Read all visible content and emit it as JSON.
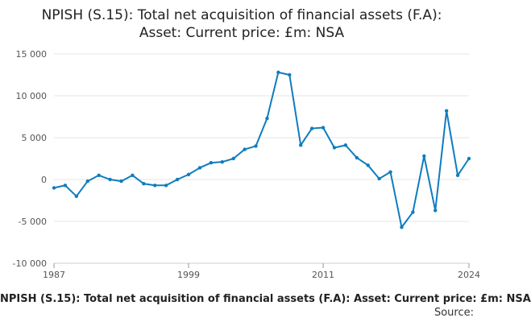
{
  "chart_data": {
    "type": "line",
    "title_line1": "NPISH (S.15): Total net acquisition of financial assets (F.A):",
    "title_line2": "Asset: Current price: £m: NSA",
    "caption": "NPISH (S.15): Total net acquisition of financial assets (F.A): Asset: Current price: £m: NSA",
    "source": "Source:",
    "x": [
      1987,
      1988,
      1989,
      1990,
      1991,
      1992,
      1993,
      1994,
      1995,
      1996,
      1997,
      1998,
      1999,
      2000,
      2001,
      2002,
      2003,
      2004,
      2005,
      2006,
      2007,
      2008,
      2009,
      2010,
      2011,
      2012,
      2013,
      2014,
      2015,
      2016,
      2017,
      2018,
      2019,
      2020,
      2021,
      2022,
      2023,
      2024
    ],
    "series": [
      {
        "values": [
          -1000,
          -700,
          -2000,
          -200,
          500,
          0,
          -200,
          500,
          -500,
          -700,
          -700,
          0,
          600,
          1400,
          2000,
          2100,
          2500,
          3600,
          4000,
          7300,
          12800,
          12500,
          4100,
          6100,
          6200,
          3800,
          4100,
          2600,
          1700,
          100,
          900,
          -5700,
          -3900,
          2800,
          -3700,
          8200,
          500,
          2500
        ]
      }
    ],
    "xticks": [
      "1987",
      "1999",
      "2011",
      "2024"
    ],
    "yticks": [
      "15 000",
      "10 000",
      "5 000",
      "0",
      "-5 000",
      "-10 000"
    ],
    "ylim": [
      -10000,
      15000
    ],
    "xlim": [
      1987,
      2024
    ],
    "grid": true,
    "line_color": "#0f7cbf",
    "grid_color": "#e6e6e6"
  }
}
